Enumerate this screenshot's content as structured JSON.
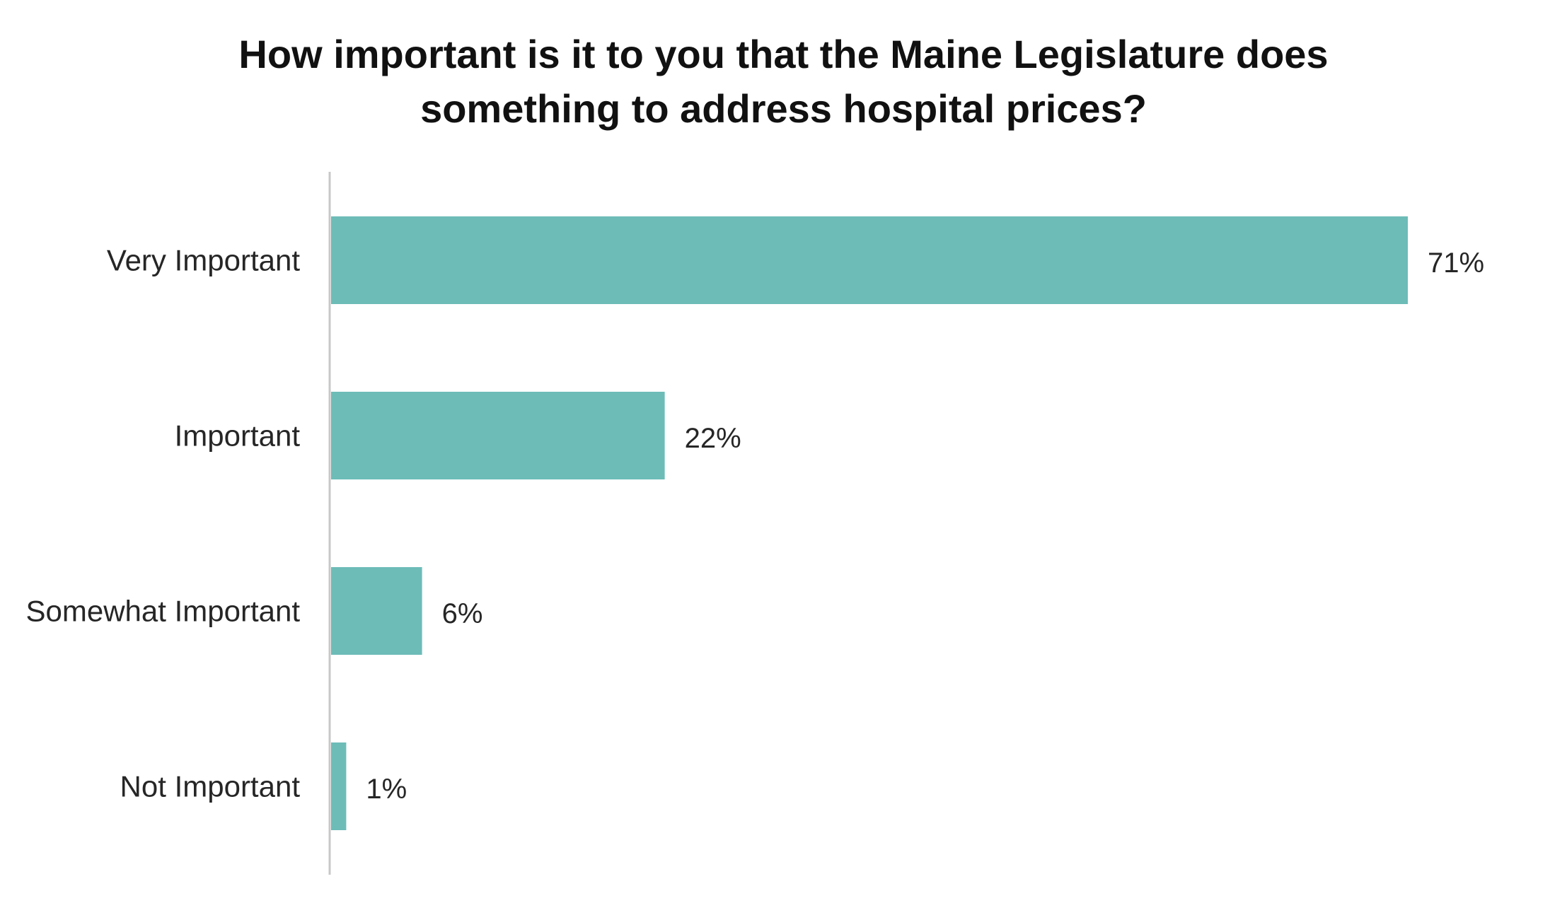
{
  "chart_data": {
    "type": "bar",
    "orientation": "horizontal",
    "title_lines": [
      "How important is it to you that the Maine Legislature does",
      "something to address hospital prices?"
    ],
    "categories": [
      "Very Important",
      "Important",
      "Somewhat Important",
      "Not Important"
    ],
    "values": [
      71,
      22,
      6,
      1
    ],
    "value_labels": [
      "71%",
      "22%",
      "6%",
      "1%"
    ],
    "xlim": [
      0,
      71
    ],
    "grid": false,
    "legend": "none",
    "bar_color": "#6dbcb8",
    "axis_color": "#c8c8c8"
  }
}
